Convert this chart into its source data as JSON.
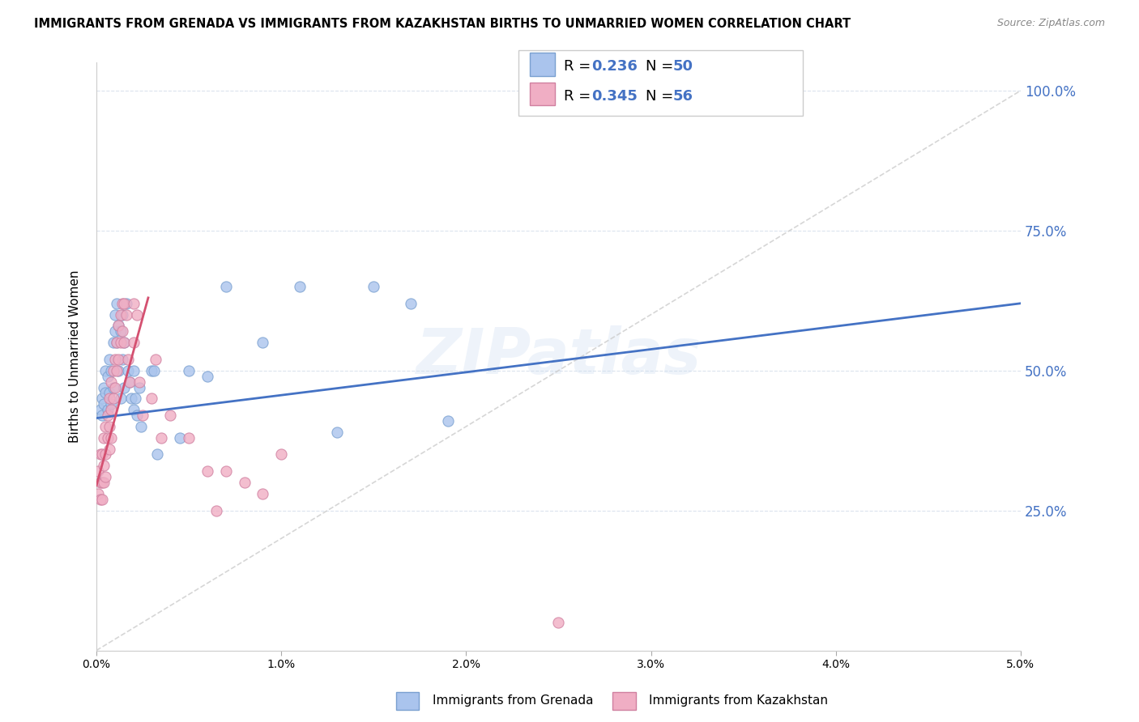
{
  "title": "IMMIGRANTS FROM GRENADA VS IMMIGRANTS FROM KAZAKHSTAN BIRTHS TO UNMARRIED WOMEN CORRELATION CHART",
  "source": "Source: ZipAtlas.com",
  "ylabel": "Births to Unmarried Women",
  "yticks": [
    0.0,
    0.25,
    0.5,
    0.75,
    1.0
  ],
  "ytick_labels": [
    "",
    "25.0%",
    "50.0%",
    "75.0%",
    "100.0%"
  ],
  "xlim": [
    0.0,
    0.05
  ],
  "ylim": [
    0.0,
    1.05
  ],
  "legend_label1": "Immigrants from Grenada",
  "legend_label2": "Immigrants from Kazakhstan",
  "color_grenada": "#aac4ed",
  "color_kazakhstan": "#f0aec4",
  "color_grenada_line": "#4472c4",
  "color_kazakhstan_line": "#d45070",
  "color_diagonal": "#cccccc",
  "watermark": "ZIPatlas",
  "grenada_x": [
    0.0002,
    0.0003,
    0.0003,
    0.0004,
    0.0004,
    0.0005,
    0.0005,
    0.0006,
    0.0006,
    0.0007,
    0.0007,
    0.0008,
    0.0008,
    0.0009,
    0.0009,
    0.001,
    0.001,
    0.0011,
    0.0011,
    0.0012,
    0.0012,
    0.0013,
    0.0013,
    0.0014,
    0.0014,
    0.0015,
    0.0015,
    0.0016,
    0.0017,
    0.0018,
    0.0019,
    0.002,
    0.002,
    0.0021,
    0.0022,
    0.0023,
    0.0024,
    0.003,
    0.0031,
    0.0033,
    0.0045,
    0.005,
    0.006,
    0.007,
    0.009,
    0.011,
    0.013,
    0.015,
    0.017,
    0.019
  ],
  "grenada_y": [
    0.43,
    0.45,
    0.42,
    0.47,
    0.44,
    0.5,
    0.46,
    0.49,
    0.43,
    0.52,
    0.46,
    0.5,
    0.44,
    0.55,
    0.47,
    0.6,
    0.57,
    0.62,
    0.55,
    0.58,
    0.5,
    0.57,
    0.45,
    0.6,
    0.52,
    0.55,
    0.47,
    0.62,
    0.5,
    0.48,
    0.45,
    0.5,
    0.43,
    0.45,
    0.42,
    0.47,
    0.4,
    0.5,
    0.5,
    0.35,
    0.38,
    0.5,
    0.49,
    0.65,
    0.55,
    0.65,
    0.39,
    0.65,
    0.62,
    0.41
  ],
  "kazakhstan_x": [
    0.0001,
    0.0001,
    0.0002,
    0.0002,
    0.0002,
    0.0003,
    0.0003,
    0.0003,
    0.0004,
    0.0004,
    0.0004,
    0.0005,
    0.0005,
    0.0005,
    0.0006,
    0.0006,
    0.0007,
    0.0007,
    0.0007,
    0.0008,
    0.0008,
    0.0008,
    0.0009,
    0.0009,
    0.001,
    0.001,
    0.0011,
    0.0011,
    0.0012,
    0.0012,
    0.0013,
    0.0013,
    0.0014,
    0.0014,
    0.0015,
    0.0015,
    0.0016,
    0.0017,
    0.0018,
    0.002,
    0.002,
    0.0022,
    0.0023,
    0.0025,
    0.003,
    0.0032,
    0.0035,
    0.004,
    0.005,
    0.006,
    0.0065,
    0.007,
    0.008,
    0.009,
    0.01,
    0.025
  ],
  "kazakhstan_y": [
    0.32,
    0.28,
    0.3,
    0.35,
    0.27,
    0.35,
    0.3,
    0.27,
    0.38,
    0.33,
    0.3,
    0.4,
    0.35,
    0.31,
    0.42,
    0.38,
    0.45,
    0.4,
    0.36,
    0.48,
    0.43,
    0.38,
    0.5,
    0.45,
    0.52,
    0.47,
    0.55,
    0.5,
    0.58,
    0.52,
    0.6,
    0.55,
    0.62,
    0.57,
    0.62,
    0.55,
    0.6,
    0.52,
    0.48,
    0.55,
    0.62,
    0.6,
    0.48,
    0.42,
    0.45,
    0.52,
    0.38,
    0.42,
    0.38,
    0.32,
    0.25,
    0.32,
    0.3,
    0.28,
    0.35,
    0.05
  ],
  "grenada_line_x": [
    0.0,
    0.05
  ],
  "grenada_line_y": [
    0.415,
    0.62
  ],
  "kazakhstan_line_x": [
    0.0,
    0.0028
  ],
  "kazakhstan_line_y": [
    0.295,
    0.63
  ]
}
